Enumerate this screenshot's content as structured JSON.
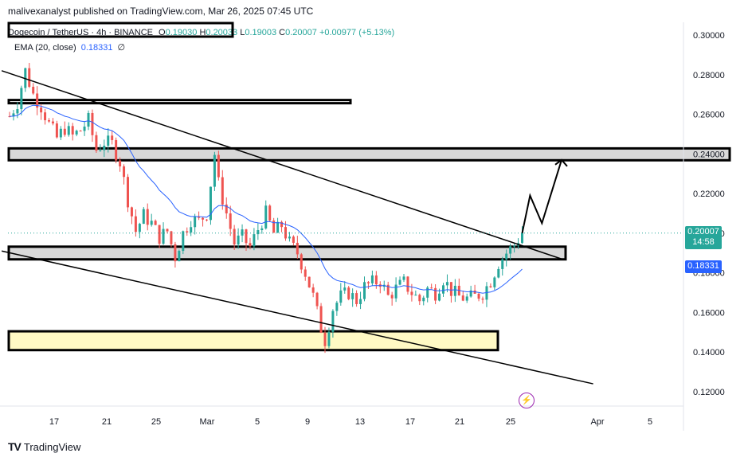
{
  "header": {
    "publisher_text": "malivexanalyst published on TradingView.com, Mar 26, 2025 07:45 UTC"
  },
  "legend": {
    "symbol": "Dogecoin / TetherUS · 4h · BINANCE",
    "open_label": "O",
    "open": "0.19030",
    "high_label": "H",
    "high": "0.20033",
    "low_label": "L",
    "low": "0.19003",
    "close_label": "C",
    "close": "0.20007",
    "change": "+0.00977 (+5.13%)",
    "ema_label": "EMA (20, close)",
    "ema_value": "0.18331",
    "ema_extra": "∅"
  },
  "price_badges": {
    "last_price": "0.20007",
    "countdown": "14:58",
    "ema": "0.18331"
  },
  "footer": {
    "brand": "TradingView"
  },
  "colors": {
    "up": "#26a69a",
    "down": "#ef5350",
    "ema": "#2962ff",
    "zone_gray": "#d9d9d9",
    "zone_yellow": "#fff9c4",
    "last_price": "#26a69a",
    "ema_badge": "#2962ff"
  },
  "chart_data": {
    "type": "candlestick",
    "symbol": "Dogecoin / TetherUS",
    "timeframe": "4h",
    "exchange": "BINANCE",
    "y_ticks": [
      "0.30000",
      "0.28000",
      "0.26000",
      "0.24000",
      "0.22000",
      "0.20000",
      "0.18000",
      "0.16000",
      "0.14000",
      "0.12000"
    ],
    "x_ticks": [
      "17",
      "21",
      "25",
      "Mar",
      "5",
      "9",
      "13",
      "17",
      "21",
      "25",
      "Apr",
      "5"
    ],
    "ylim": [
      0.114,
      0.304
    ],
    "grid": false,
    "last_close": 0.20007,
    "ema_last": 0.18331,
    "price_path": [
      [
        0,
        0.259
      ],
      [
        2,
        0.266
      ],
      [
        4,
        0.282
      ],
      [
        6,
        0.27
      ],
      [
        8,
        0.264
      ],
      [
        10,
        0.255
      ],
      [
        12,
        0.248
      ],
      [
        14,
        0.253
      ],
      [
        16,
        0.249
      ],
      [
        18,
        0.252
      ],
      [
        20,
        0.257
      ],
      [
        22,
        0.242
      ],
      [
        24,
        0.246
      ],
      [
        26,
        0.245
      ],
      [
        28,
        0.236
      ],
      [
        30,
        0.217
      ],
      [
        32,
        0.201
      ],
      [
        34,
        0.209
      ],
      [
        36,
        0.205
      ],
      [
        38,
        0.198
      ],
      [
        40,
        0.201
      ],
      [
        42,
        0.188
      ],
      [
        44,
        0.2
      ],
      [
        46,
        0.207
      ],
      [
        48,
        0.206
      ],
      [
        50,
        0.21
      ],
      [
        52,
        0.24
      ],
      [
        53,
        0.225
      ],
      [
        55,
        0.21
      ],
      [
        57,
        0.195
      ],
      [
        59,
        0.198
      ],
      [
        61,
        0.193
      ],
      [
        63,
        0.202
      ],
      [
        65,
        0.21
      ],
      [
        67,
        0.2
      ],
      [
        69,
        0.204
      ],
      [
        71,
        0.195
      ],
      [
        73,
        0.19
      ],
      [
        75,
        0.18
      ],
      [
        77,
        0.168
      ],
      [
        79,
        0.152
      ],
      [
        80,
        0.146
      ],
      [
        82,
        0.162
      ],
      [
        84,
        0.168
      ],
      [
        86,
        0.17
      ],
      [
        88,
        0.166
      ],
      [
        90,
        0.173
      ],
      [
        92,
        0.175
      ],
      [
        94,
        0.176
      ],
      [
        96,
        0.168
      ],
      [
        98,
        0.172
      ],
      [
        100,
        0.175
      ],
      [
        102,
        0.17
      ],
      [
        104,
        0.166
      ],
      [
        106,
        0.172
      ],
      [
        108,
        0.17
      ],
      [
        110,
        0.177
      ],
      [
        112,
        0.171
      ],
      [
        114,
        0.168
      ],
      [
        116,
        0.167
      ],
      [
        118,
        0.168
      ],
      [
        120,
        0.17
      ],
      [
        122,
        0.176
      ],
      [
        124,
        0.185
      ],
      [
        126,
        0.19
      ],
      [
        128,
        0.194
      ],
      [
        130,
        0.2
      ]
    ],
    "zones": [
      {
        "from": 0.2656,
        "to": 0.2672,
        "color": "white"
      },
      {
        "from": 0.2368,
        "to": 0.2428,
        "color": "gray"
      },
      {
        "from": 0.1868,
        "to": 0.1932,
        "color": "gray"
      },
      {
        "from": 0.141,
        "to": 0.1505,
        "color": "yellow"
      }
    ],
    "trendlines": [
      {
        "from": [
          -2,
          0.282
        ],
        "to": [
          140,
          0.187
        ]
      },
      {
        "from": [
          -2,
          0.191
        ],
        "to": [
          148,
          0.124
        ]
      }
    ],
    "projection": [
      [
        130,
        0.2
      ],
      [
        132,
        0.219
      ],
      [
        135,
        0.205
      ],
      [
        140,
        0.237
      ]
    ]
  }
}
